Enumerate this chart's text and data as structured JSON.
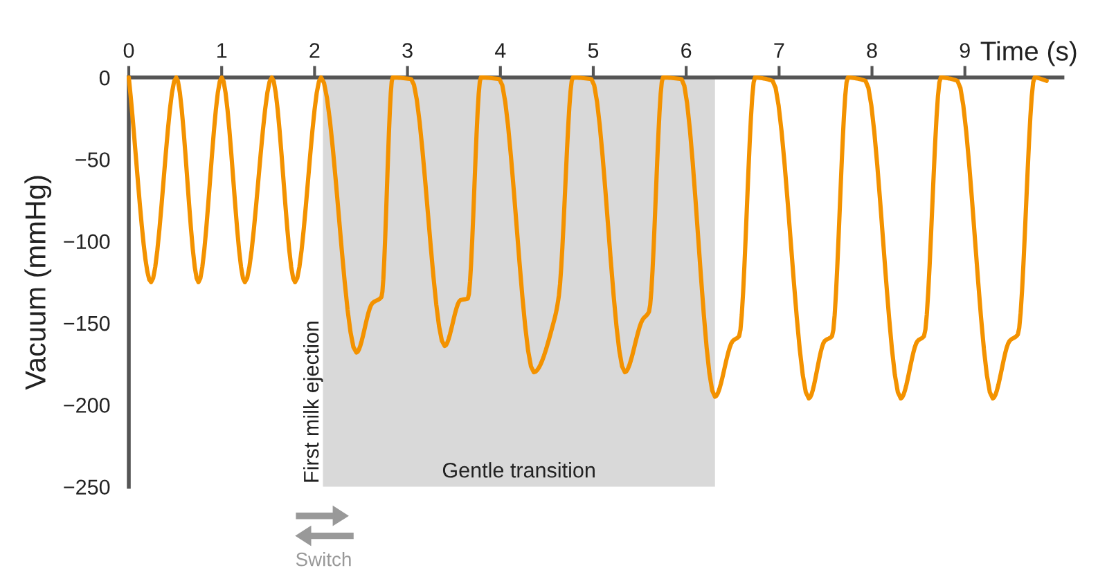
{
  "chart_data": {
    "type": "line",
    "xlabel": "Time (s)",
    "ylabel": "Vacuum (mmHg)",
    "x": [
      0,
      0.24,
      0.51,
      0.75,
      1.0,
      1.25,
      1.54,
      1.79,
      2.07,
      2.45,
      2.62,
      2.72,
      2.84,
      3.04,
      3.4,
      3.57,
      3.65,
      3.79,
      3.99,
      4.36,
      4.58,
      4.63,
      4.78,
      4.98,
      5.34,
      5.53,
      5.6,
      5.75,
      5.95,
      6.31,
      6.5,
      6.57,
      6.74,
      6.93,
      7.32,
      7.49,
      7.57,
      7.74,
      7.93,
      8.31,
      8.49,
      8.56,
      8.74,
      8.92,
      9.3,
      9.48,
      9.57,
      9.75,
      9.88
    ],
    "series": [
      {
        "color": "#f39200",
        "values": [
          0,
          -125,
          0,
          -125,
          0,
          -125,
          0,
          -125,
          0,
          -168,
          -138,
          -134,
          0,
          -1,
          -164,
          -136,
          -135,
          0,
          -1,
          -180,
          -148,
          -133,
          0,
          -1,
          -180,
          -148,
          -143,
          0,
          -1,
          -195,
          -161,
          -158,
          0,
          -2,
          -196,
          -161,
          -158,
          0,
          -2,
          -196,
          -161,
          -158,
          0,
          -2,
          -196,
          -161,
          -157,
          0,
          -2
        ]
      }
    ],
    "xlim": [
      0,
      10.05
    ],
    "xticks": [
      0,
      1,
      2,
      3,
      4,
      5,
      6,
      7,
      8,
      9
    ],
    "ylim": [
      -250,
      0
    ],
    "yticks": [
      {
        "value": 0,
        "label": "0"
      },
      {
        "value": -50,
        "label": "−50"
      },
      {
        "value": -100,
        "label": "−100"
      },
      {
        "value": -150,
        "label": "−150"
      },
      {
        "value": -200,
        "label": "−200"
      },
      {
        "value": -250,
        "label": "−250"
      }
    ],
    "bands": [
      {
        "axis": "x",
        "from": 2.09,
        "to": 6.31,
        "label": "Gentle transition",
        "color": "#d9d9d9"
      }
    ],
    "annotations": [
      {
        "text": "First milk ejection",
        "x": 2.09,
        "y": -250
      },
      "Switch"
    ],
    "grid": false,
    "legend": false,
    "marker": "none",
    "line_style": "solid"
  }
}
